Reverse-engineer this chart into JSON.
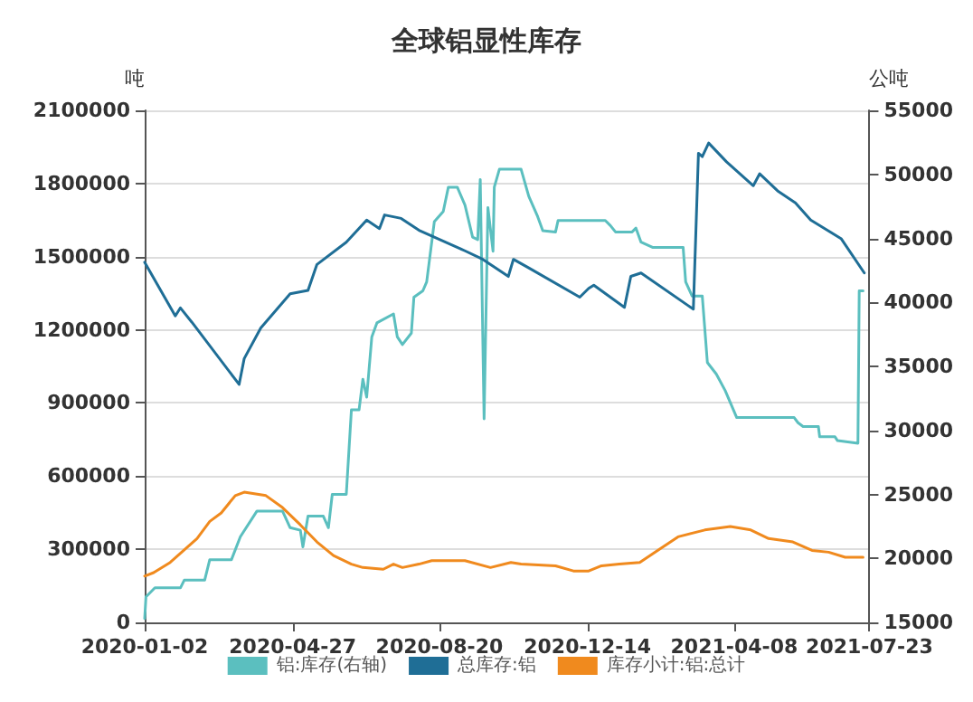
{
  "chart_data": {
    "type": "line",
    "title": "全球铝显性库存",
    "ylabel": "吨",
    "y2label": "公吨",
    "xlim": [
      "2020-01-02",
      "2021-07-23"
    ],
    "xticks": [
      "2020-01-02",
      "2020-04-27",
      "2020-08-20",
      "2020-12-14",
      "2021-04-08",
      "2021-07-23"
    ],
    "ylim": [
      0,
      2100000
    ],
    "yticks": [
      0,
      300000,
      600000,
      900000,
      1200000,
      1500000,
      1800000,
      2100000
    ],
    "y2lim": [
      15000,
      55000
    ],
    "y2ticks": [
      15000,
      20000,
      25000,
      30000,
      35000,
      40000,
      45000,
      50000,
      55000
    ],
    "grid": "y",
    "legend": "bottom",
    "marker": "none",
    "line_style": "solid",
    "series": [
      {
        "name": "铝:库存(右轴)",
        "color": "#5bbfbf",
        "axis": "y2",
        "x": [
          "2020-01-02",
          "2020-01-03",
          "2020-01-10",
          "2020-01-30",
          "2020-02-02",
          "2020-02-18",
          "2020-02-22",
          "2020-03-10",
          "2020-03-17",
          "2020-03-30",
          "2020-04-19",
          "2020-04-25",
          "2020-05-03",
          "2020-05-05",
          "2020-05-09",
          "2020-05-21",
          "2020-05-25",
          "2020-05-28",
          "2020-06-08",
          "2020-06-12",
          "2020-06-18",
          "2020-06-21",
          "2020-06-24",
          "2020-06-28",
          "2020-07-02",
          "2020-07-15",
          "2020-07-18",
          "2020-07-22",
          "2020-07-29",
          "2020-07-31",
          "2020-08-07",
          "2020-08-10",
          "2020-08-16",
          "2020-08-23",
          "2020-08-27",
          "2020-09-03",
          "2020-09-09",
          "2020-09-15",
          "2020-09-19",
          "2020-09-21",
          "2020-09-24",
          "2020-09-27",
          "2020-10-01",
          "2020-10-02",
          "2020-10-06",
          "2020-10-23",
          "2020-10-29",
          "2020-11-05",
          "2020-11-09",
          "2020-11-19",
          "2020-11-21",
          "2020-12-28",
          "2021-01-01",
          "2021-01-05",
          "2021-01-18",
          "2021-01-21",
          "2021-01-25",
          "2021-02-03",
          "2021-02-27",
          "2021-03-01",
          "2021-03-06",
          "2021-03-14",
          "2021-03-18",
          "2021-03-25",
          "2021-04-01",
          "2021-04-10",
          "2021-05-25",
          "2021-05-28",
          "2021-06-01",
          "2021-06-13",
          "2021-06-14",
          "2021-06-26",
          "2021-06-28",
          "2021-07-14",
          "2021-07-15",
          "2021-07-18"
        ],
        "values": [
          15300,
          17000,
          17700,
          17700,
          18300,
          18300,
          19900,
          19900,
          21700,
          23700,
          23700,
          22400,
          22200,
          20900,
          23300,
          23300,
          22400,
          25000,
          25000,
          31600,
          31600,
          34000,
          32600,
          37300,
          38400,
          39100,
          37300,
          36700,
          37600,
          40400,
          40900,
          41600,
          46300,
          47100,
          49000,
          49000,
          47600,
          45100,
          44900,
          49600,
          30900,
          47400,
          44000,
          49000,
          50400,
          50400,
          48300,
          46700,
          45600,
          45500,
          46400,
          46400,
          46000,
          45500,
          45500,
          45800,
          44700,
          44300,
          44300,
          41600,
          40500,
          40500,
          35300,
          34400,
          33100,
          31000,
          31000,
          30600,
          30300,
          30300,
          29500,
          29500,
          29200,
          29000,
          40900,
          40900
        ]
      },
      {
        "name": "总库存:铝",
        "color": "#1f6e96",
        "x": [
          "2020-01-02",
          "2020-01-26",
          "2020-01-30",
          "2020-02-08",
          "2020-03-16",
          "2020-03-20",
          "2020-04-02",
          "2020-04-25",
          "2020-05-09",
          "2020-05-16",
          "2020-06-08",
          "2020-06-24",
          "2020-07-04",
          "2020-07-08",
          "2020-07-21",
          "2020-08-04",
          "2020-09-09",
          "2020-09-23",
          "2020-10-13",
          "2020-10-17",
          "2020-10-29",
          "2020-12-08",
          "2020-12-15",
          "2020-12-19",
          "2021-01-12",
          "2021-01-17",
          "2021-01-25",
          "2021-03-03",
          "2021-03-07",
          "2021-03-11",
          "2021-03-14",
          "2021-03-19",
          "2021-04-02",
          "2021-04-23",
          "2021-04-28",
          "2021-05-12",
          "2021-05-26",
          "2021-06-07",
          "2021-06-18",
          "2021-07-01",
          "2021-07-19"
        ],
        "values": [
          1477000,
          1257000,
          1290000,
          1231000,
          976000,
          1082000,
          1208000,
          1348000,
          1362000,
          1468000,
          1559000,
          1650000,
          1615000,
          1671000,
          1657000,
          1608000,
          1524000,
          1489000,
          1419000,
          1489000,
          1454000,
          1334000,
          1370000,
          1383000,
          1292000,
          1419000,
          1433000,
          1299000,
          1285000,
          1924000,
          1910000,
          1966000,
          1889000,
          1791000,
          1840000,
          1770000,
          1721000,
          1650000,
          1615000,
          1573000,
          1433000
        ]
      },
      {
        "name": "库存小计:铝:总计",
        "color": "#f08a1e",
        "x": [
          "2020-01-02",
          "2020-01-09",
          "2020-01-22",
          "2020-02-12",
          "2020-02-22",
          "2020-03-02",
          "2020-03-13",
          "2020-03-20",
          "2020-04-06",
          "2020-04-19",
          "2020-05-03",
          "2020-05-16",
          "2020-05-29",
          "2020-06-12",
          "2020-06-21",
          "2020-07-07",
          "2020-07-15",
          "2020-07-22",
          "2020-08-04",
          "2020-08-14",
          "2020-09-09",
          "2020-09-29",
          "2020-10-15",
          "2020-10-23",
          "2020-11-19",
          "2020-12-03",
          "2020-12-15",
          "2020-12-25",
          "2021-01-08",
          "2021-01-24",
          "2021-02-07",
          "2021-02-23",
          "2021-03-16",
          "2021-04-05",
          "2021-04-21",
          "2021-05-05",
          "2021-05-24",
          "2021-06-08",
          "2021-06-21",
          "2021-07-04",
          "2021-07-18"
        ],
        "values": [
          190000,
          204000,
          246000,
          344000,
          414000,
          449000,
          520000,
          534000,
          520000,
          471000,
          400000,
          330000,
          274000,
          239000,
          225000,
          218000,
          239000,
          225000,
          239000,
          253000,
          253000,
          225000,
          246000,
          239000,
          232000,
          211000,
          211000,
          232000,
          239000,
          246000,
          295000,
          351000,
          379000,
          393000,
          379000,
          344000,
          330000,
          295000,
          288000,
          267000,
          267000
        ]
      }
    ]
  }
}
